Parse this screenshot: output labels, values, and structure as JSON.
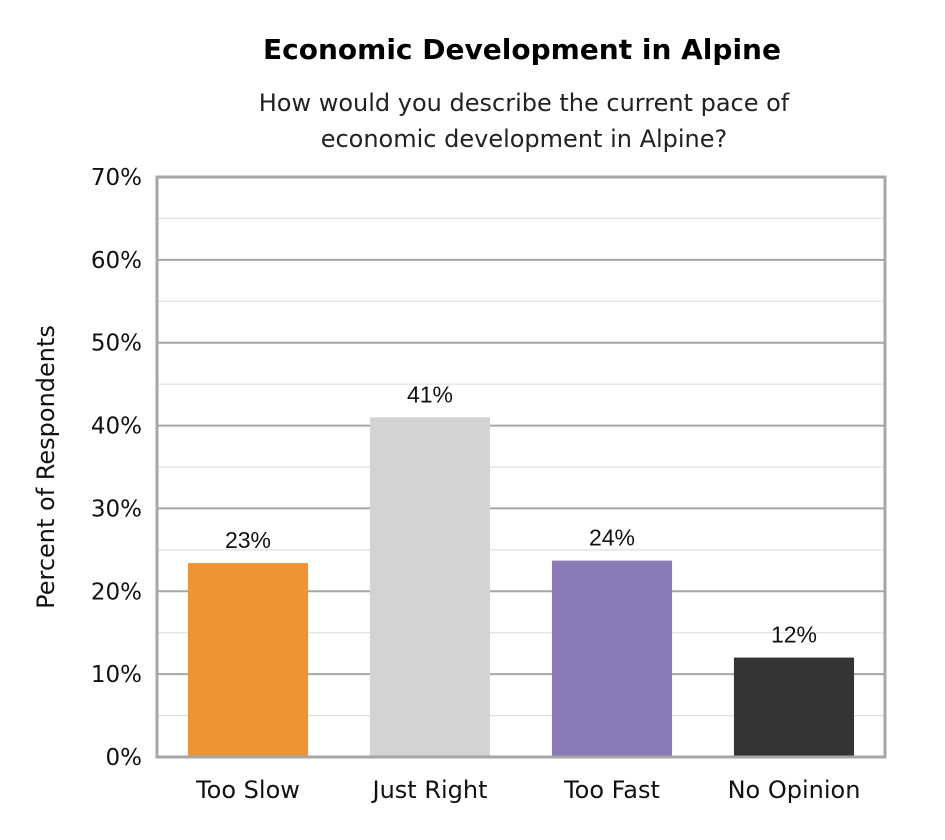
{
  "chart_data": {
    "type": "bar",
    "title": "Economic Development in Alpine",
    "subtitle_lines": [
      "How would you describe the current pace of",
      "economic development in Alpine?"
    ],
    "xlabel": "",
    "ylabel": "Percent of Respondents",
    "ylim": [
      0,
      70
    ],
    "y_ticks": [
      0,
      10,
      20,
      30,
      40,
      50,
      60,
      70
    ],
    "y_tick_labels": [
      "0%",
      "10%",
      "20%",
      "30%",
      "40%",
      "50%",
      "60%",
      "70%"
    ],
    "minor_gridlines": true,
    "grid": true,
    "legend": "none",
    "categories": [
      "Too Slow",
      "Just Right",
      "Too Fast",
      "No Opinion"
    ],
    "values": [
      23.4,
      41,
      23.7,
      12
    ],
    "data_labels": [
      "23%",
      "41%",
      "24%",
      "12%"
    ],
    "colors": [
      "#EE9434",
      "#D3D3D3",
      "#8A7BB6",
      "#343434"
    ]
  }
}
